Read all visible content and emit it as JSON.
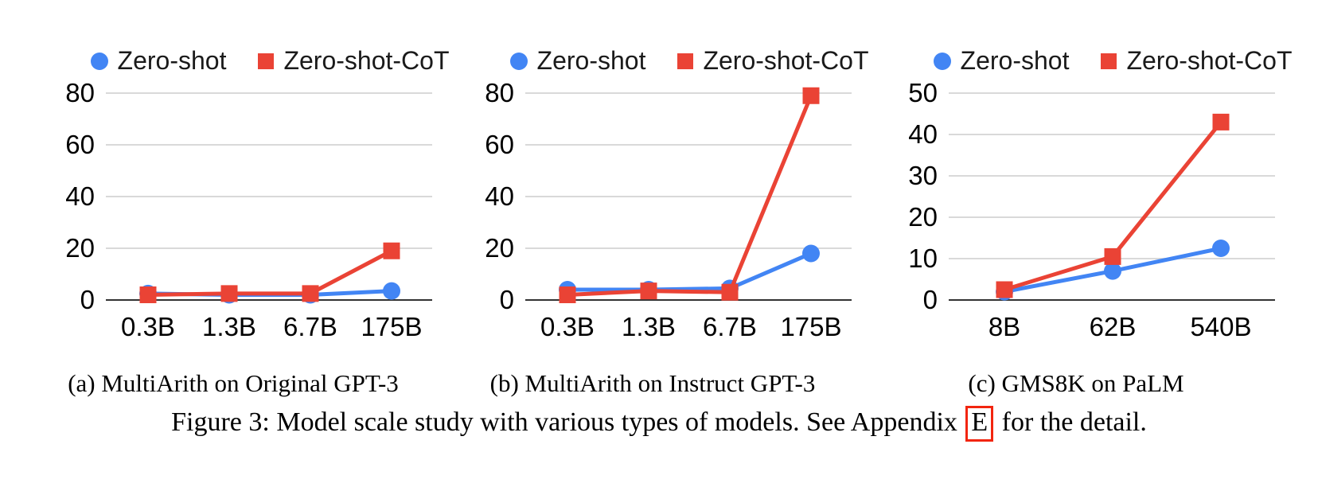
{
  "figure": {
    "caption_prefix": "Figure 3: Model scale study with various types of models. See Appendix ",
    "appendix_ref": "E",
    "caption_suffix": " for the detail."
  },
  "colors": {
    "zero_shot_blue": "#4285F4",
    "zero_shot_cot_red": "#EA4335",
    "gridline": "#d9d9d9",
    "axis": "#333333",
    "legend_text": "#1a1a1a",
    "appendix_ref_box": "#f2250f"
  },
  "chart_data": [
    {
      "type": "line",
      "subcaption": "(a) MultiArith on Original GPT-3",
      "title": "MultiArith on Original GPT-3",
      "xlabel": "",
      "ylabel": "",
      "categories": [
        "0.3B",
        "1.3B",
        "6.7B",
        "175B"
      ],
      "series": [
        {
          "name": "Zero-shot",
          "marker": "circle",
          "color": "#4285F4",
          "values": [
            2.5,
            2,
            2,
            3.5
          ]
        },
        {
          "name": "Zero-shot-CoT",
          "marker": "square",
          "color": "#EA4335",
          "values": [
            2,
            2.5,
            2.5,
            19
          ]
        }
      ],
      "ylim": [
        0,
        80
      ],
      "yticks": [
        0,
        20,
        40,
        60,
        80
      ],
      "legend_position": "top",
      "grid": true
    },
    {
      "type": "line",
      "subcaption": "(b) MultiArith on Instruct GPT-3",
      "title": "MultiArith on Instruct GPT-3",
      "xlabel": "",
      "ylabel": "",
      "categories": [
        "0.3B",
        "1.3B",
        "6.7B",
        "175B"
      ],
      "series": [
        {
          "name": "Zero-shot",
          "marker": "circle",
          "color": "#4285F4",
          "values": [
            4,
            4,
            4.5,
            18
          ]
        },
        {
          "name": "Zero-shot-CoT",
          "marker": "square",
          "color": "#EA4335",
          "values": [
            2,
            3.5,
            3,
            79
          ]
        }
      ],
      "ylim": [
        0,
        80
      ],
      "yticks": [
        0,
        20,
        40,
        60,
        80
      ],
      "legend_position": "top",
      "grid": true
    },
    {
      "type": "line",
      "subcaption": "(c) GMS8K on PaLM",
      "title": "GMS8K on PaLM",
      "xlabel": "",
      "ylabel": "",
      "categories": [
        "8B",
        "62B",
        "540B"
      ],
      "series": [
        {
          "name": "Zero-shot",
          "marker": "circle",
          "color": "#4285F4",
          "values": [
            2,
            7,
            12.5
          ]
        },
        {
          "name": "Zero-shot-CoT",
          "marker": "square",
          "color": "#EA4335",
          "values": [
            2.5,
            10.5,
            43
          ]
        }
      ],
      "ylim": [
        0,
        50
      ],
      "yticks": [
        0,
        10,
        20,
        30,
        40,
        50
      ],
      "legend_position": "top",
      "grid": true
    }
  ]
}
